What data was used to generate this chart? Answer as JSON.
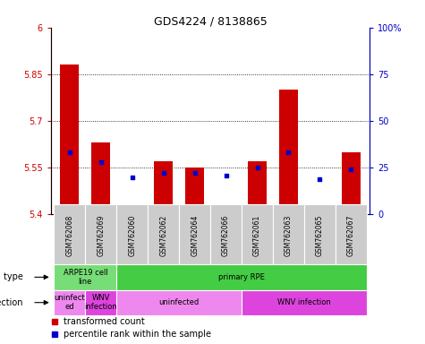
{
  "title": "GDS4224 / 8138865",
  "samples": [
    "GSM762068",
    "GSM762069",
    "GSM762060",
    "GSM762062",
    "GSM762064",
    "GSM762066",
    "GSM762061",
    "GSM762063",
    "GSM762065",
    "GSM762067"
  ],
  "transformed_count": [
    5.88,
    5.63,
    5.42,
    5.57,
    5.55,
    5.42,
    5.57,
    5.8,
    5.43,
    5.6
  ],
  "percentile_rank": [
    33,
    28,
    20,
    22,
    22,
    21,
    25,
    33,
    19,
    24
  ],
  "ylim": [
    5.4,
    6.0
  ],
  "yticks": [
    5.4,
    5.55,
    5.7,
    5.85,
    6.0
  ],
  "ytick_labels": [
    "5.4",
    "5.55",
    "5.7",
    "5.85",
    "6"
  ],
  "y2lim": [
    0,
    100
  ],
  "y2ticks": [
    0,
    25,
    50,
    75,
    100
  ],
  "y2labels": [
    "0",
    "25",
    "50",
    "75",
    "100%"
  ],
  "bar_color": "#cc0000",
  "dot_color": "#0000cc",
  "bar_width": 0.6,
  "cell_type_labels": [
    {
      "text": "ARPE19 cell\nline",
      "start": 0,
      "end": 2,
      "color": "#77dd77"
    },
    {
      "text": "primary RPE",
      "start": 2,
      "end": 10,
      "color": "#44cc44"
    }
  ],
  "infection_labels": [
    {
      "text": "uninfect\ned",
      "start": 0,
      "end": 1,
      "color": "#ee88ee"
    },
    {
      "text": "WNV\ninfection",
      "start": 1,
      "end": 2,
      "color": "#dd44dd"
    },
    {
      "text": "uninfected",
      "start": 2,
      "end": 6,
      "color": "#ee88ee"
    },
    {
      "text": "WNV infection",
      "start": 6,
      "end": 10,
      "color": "#dd44dd"
    }
  ],
  "tick_color_left": "#cc0000",
  "tick_color_right": "#0000cc",
  "grid_color": "#000000",
  "bg_color": "#ffffff",
  "sample_bg_color": "#cccccc"
}
